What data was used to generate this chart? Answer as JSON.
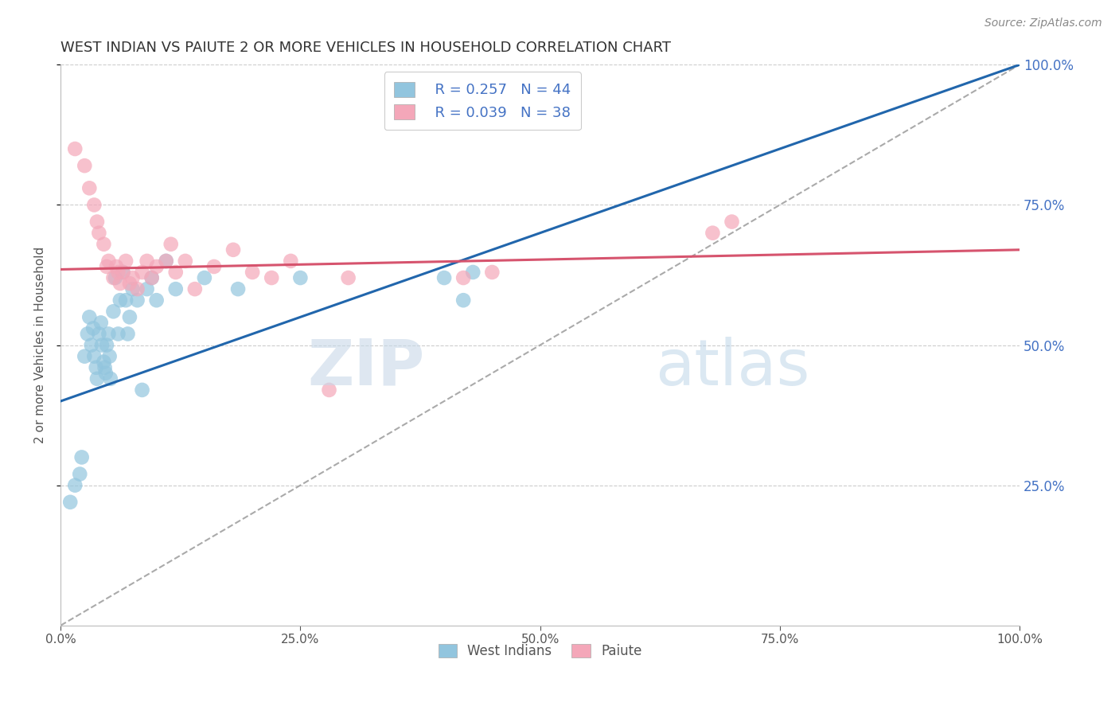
{
  "title": "WEST INDIAN VS PAIUTE 2 OR MORE VEHICLES IN HOUSEHOLD CORRELATION CHART",
  "source_text": "Source: ZipAtlas.com",
  "ylabel": "2 or more Vehicles in Household",
  "watermark_zip": "ZIP",
  "watermark_atlas": "atlas",
  "xlim": [
    0.0,
    1.0
  ],
  "ylim": [
    0.0,
    1.0
  ],
  "xtick_labels": [
    "0.0%",
    "25.0%",
    "50.0%",
    "75.0%",
    "100.0%"
  ],
  "xtick_vals": [
    0.0,
    0.25,
    0.5,
    0.75,
    1.0
  ],
  "ytick_labels": [
    "25.0%",
    "50.0%",
    "75.0%",
    "100.0%"
  ],
  "ytick_vals": [
    0.25,
    0.5,
    0.75,
    1.0
  ],
  "blue_R": 0.257,
  "blue_N": 44,
  "pink_R": 0.039,
  "pink_N": 38,
  "blue_color": "#92c5de",
  "pink_color": "#f4a7b9",
  "blue_line_color": "#2166ac",
  "pink_line_color": "#d6546e",
  "gray_dash_color": "#aaaaaa",
  "title_color": "#333333",
  "source_color": "#888888",
  "legend_label_blue": "West Indians",
  "legend_label_pink": "Paiute",
  "legend_text_color": "#4472c4",
  "blue_trend_x0": 0.0,
  "blue_trend_y0": 0.4,
  "blue_trend_x1": 1.0,
  "blue_trend_y1": 1.0,
  "pink_trend_x0": 0.0,
  "pink_trend_y0": 0.635,
  "pink_trend_x1": 1.0,
  "pink_trend_y1": 0.67,
  "blue_x": [
    0.01,
    0.015,
    0.02,
    0.022,
    0.025,
    0.028,
    0.03,
    0.032,
    0.034,
    0.035,
    0.037,
    0.038,
    0.04,
    0.042,
    0.043,
    0.045,
    0.046,
    0.047,
    0.048,
    0.05,
    0.051,
    0.052,
    0.055,
    0.057,
    0.06,
    0.062,
    0.065,
    0.068,
    0.07,
    0.072,
    0.075,
    0.08,
    0.085,
    0.09,
    0.095,
    0.1,
    0.11,
    0.12,
    0.15,
    0.185,
    0.25,
    0.4,
    0.42,
    0.43
  ],
  "blue_y": [
    0.22,
    0.25,
    0.27,
    0.3,
    0.48,
    0.52,
    0.55,
    0.5,
    0.53,
    0.48,
    0.46,
    0.44,
    0.52,
    0.54,
    0.5,
    0.47,
    0.46,
    0.45,
    0.5,
    0.52,
    0.48,
    0.44,
    0.56,
    0.62,
    0.52,
    0.58,
    0.63,
    0.58,
    0.52,
    0.55,
    0.6,
    0.58,
    0.42,
    0.6,
    0.62,
    0.58,
    0.65,
    0.6,
    0.62,
    0.6,
    0.62,
    0.62,
    0.58,
    0.63
  ],
  "pink_x": [
    0.015,
    0.025,
    0.03,
    0.035,
    0.038,
    0.04,
    0.045,
    0.048,
    0.05,
    0.055,
    0.058,
    0.06,
    0.062,
    0.065,
    0.068,
    0.072,
    0.075,
    0.08,
    0.085,
    0.09,
    0.095,
    0.1,
    0.11,
    0.115,
    0.12,
    0.13,
    0.14,
    0.16,
    0.18,
    0.2,
    0.22,
    0.24,
    0.28,
    0.3,
    0.42,
    0.45,
    0.68,
    0.7
  ],
  "pink_y": [
    0.85,
    0.82,
    0.78,
    0.75,
    0.72,
    0.7,
    0.68,
    0.64,
    0.65,
    0.62,
    0.64,
    0.63,
    0.61,
    0.63,
    0.65,
    0.61,
    0.62,
    0.6,
    0.63,
    0.65,
    0.62,
    0.64,
    0.65,
    0.68,
    0.63,
    0.65,
    0.6,
    0.64,
    0.67,
    0.63,
    0.62,
    0.65,
    0.42,
    0.62,
    0.62,
    0.63,
    0.7,
    0.72
  ]
}
